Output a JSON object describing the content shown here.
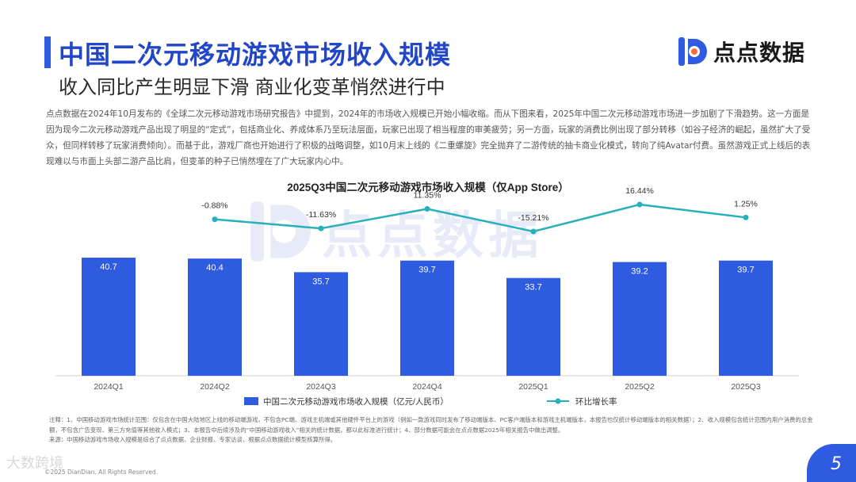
{
  "header": {
    "title": "中国二次元移动游戏市场收入规模",
    "subtitle": "收入同比产生明显下滑 商业化变革悄然进行中",
    "logo_text": "点点数据",
    "logo_icon": "diandian-logo-icon"
  },
  "intro_text": "点点数据在2024年10月发布的《全球二次元移动游戏市场研究报告》中提到，2024年的市场收入规模已开始小幅收缩。而从下图来看，2025年中国二次元移动游戏市场进一步加剧了下滑趋势。这一方面是因为现今二次元移动游戏产品出现了明显的“定式”，包括商业化、养成体系乃至玩法层面，玩家已出现了相当程度的审美疲劳；另一方面，玩家的消费比例出现了部分转移（如谷子经济的崛起，虽然扩大了受众，但同样转移了玩家消费倾向）。而基于此，游戏厂商也开始进行了积极的战略调整，如10月末上线的《二重螺旋》完全抛弃了二游传统的抽卡商业化模式，转向了纯Avatar付费。虽然游戏正式上线后的表现难以与市面上头部二游产品比肩，但变革的种子已悄然埋在了广大玩家内心中。",
  "watermark_text": "点点数据",
  "chart_data": {
    "type": "bar",
    "title": "2025Q3中国二次元移动游戏市场收入规模（仅App Store）",
    "categories": [
      "2024Q1",
      "2024Q2",
      "2024Q3",
      "2024Q4",
      "2025Q1",
      "2025Q2",
      "2025Q3"
    ],
    "series": [
      {
        "name": "中国二次元移动游戏市场收入规模（亿元/人民币）",
        "type": "bar",
        "values": [
          40.7,
          40.4,
          35.7,
          39.7,
          33.7,
          39.2,
          39.7
        ],
        "labels": [
          "40.7",
          "40.4",
          "35.7",
          "39.7",
          "33.7",
          "39.2",
          "39.7"
        ],
        "color": "#2f5be0"
      },
      {
        "name": "环比增长率",
        "type": "line",
        "values": [
          null,
          -0.88,
          -11.63,
          11.35,
          -15.21,
          16.44,
          1.25
        ],
        "labels": [
          "",
          "-0.88%",
          "-11.63%",
          "11.35%",
          "-15.21%",
          "16.44%",
          "1.25%"
        ],
        "color": "#26b0bb"
      }
    ],
    "legend_position": "bottom",
    "grid": false
  },
  "footer": {
    "notes": "注释：1、中国移动游戏市场统计范围：仅包含在中国大陆地区上线的移动端游戏，不包含PC端、游戏主机端或其他硬件平台上的游戏（例如一款游戏同时发布了移动端版本、PC客户端版本和游戏主机端版本，本报告也仅统计移动端版本的相关数据）；2、收入规模包含统计范围内用户消费的总金额，不包含广告变现、第三方充值等其他收入模式；3、本报告中后续涉及的“中国移动游戏收入”相关的统计数据，都以此标准进行统计；4、部分数据可能会在点点数据2025年相关报告中做出调整。",
    "source": "来源：中国移动游戏市场收入规模是综合了点点数据、企业财报、专家访谈，根据点点数据统计模型核算所得。",
    "copyright": "©2025 DianDian. All Rights Reserved.",
    "page_number": "5",
    "overlay_watermark": "大数跨境"
  }
}
